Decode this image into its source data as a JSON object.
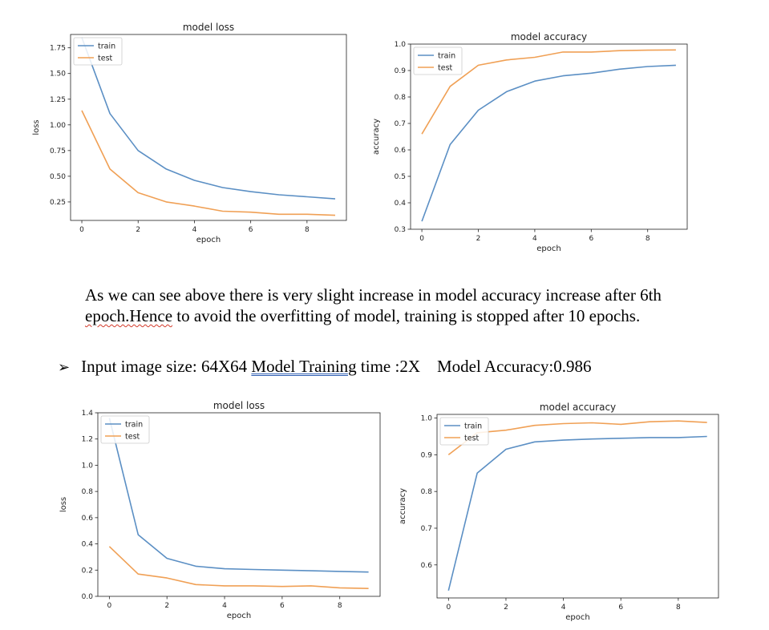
{
  "colors": {
    "train": "#5b8fc4",
    "test": "#f0a055"
  },
  "paragraph": {
    "line1": "As we can see above there is very slight increase in model accuracy increase after 6th",
    "line2_squiggle": "epoch.Hence",
    "line2_rest": " to avoid the overfitting of model, training is stopped after 10 epochs."
  },
  "bullet": {
    "icon": "arrow-bullet-icon",
    "glyph": "➢",
    "text_before": "Input image size: 64X64 ",
    "text_underlined": "Model  Training",
    "text_after": " time :2X    Model Accuracy:0.986"
  },
  "chart_data": [
    {
      "type": "line",
      "title": "model loss",
      "xlabel": "epoch",
      "ylabel": "loss",
      "xlim": [
        -0.4,
        9.4
      ],
      "ylim": [
        0.07,
        1.88
      ],
      "xticks": [
        0,
        2,
        4,
        6,
        8
      ],
      "yticks": [
        0.25,
        0.5,
        0.75,
        1.0,
        1.25,
        1.5,
        1.75
      ],
      "ytick_labels": [
        "0.25",
        "0.50",
        "0.75",
        "1.00",
        "1.25",
        "1.50",
        "1.75"
      ],
      "xtick_labels": [
        "0",
        "2",
        "4",
        "6",
        "8"
      ],
      "legend": "top-left",
      "grid": false,
      "x": [
        0,
        1,
        2,
        3,
        4,
        5,
        6,
        7,
        8,
        9
      ],
      "series": [
        {
          "name": "train",
          "values": [
            1.85,
            1.11,
            0.75,
            0.57,
            0.46,
            0.39,
            0.35,
            0.32,
            0.3,
            0.28
          ]
        },
        {
          "name": "test",
          "values": [
            1.14,
            0.57,
            0.34,
            0.25,
            0.21,
            0.16,
            0.15,
            0.13,
            0.13,
            0.12
          ]
        }
      ]
    },
    {
      "type": "line",
      "title": "model accuracy",
      "xlabel": "epoch",
      "ylabel": "accuracy",
      "xlim": [
        -0.4,
        9.4
      ],
      "ylim": [
        0.3,
        1.0
      ],
      "xticks": [
        0,
        2,
        4,
        6,
        8
      ],
      "yticks": [
        0.3,
        0.4,
        0.5,
        0.6,
        0.7,
        0.8,
        0.9,
        1.0
      ],
      "ytick_labels": [
        "0.3",
        "0.4",
        "0.5",
        "0.6",
        "0.7",
        "0.8",
        "0.9",
        "1.0"
      ],
      "xtick_labels": [
        "0",
        "2",
        "4",
        "6",
        "8"
      ],
      "legend": "top-left",
      "grid": false,
      "x": [
        0,
        1,
        2,
        3,
        4,
        5,
        6,
        7,
        8,
        9
      ],
      "series": [
        {
          "name": "train",
          "values": [
            0.33,
            0.62,
            0.75,
            0.82,
            0.86,
            0.88,
            0.89,
            0.905,
            0.915,
            0.92
          ]
        },
        {
          "name": "test",
          "values": [
            0.66,
            0.84,
            0.92,
            0.94,
            0.95,
            0.97,
            0.97,
            0.975,
            0.977,
            0.978
          ]
        }
      ]
    },
    {
      "type": "line",
      "title": "model loss",
      "xlabel": "epoch",
      "ylabel": "loss",
      "xlim": [
        -0.4,
        9.4
      ],
      "ylim": [
        0.0,
        1.4
      ],
      "xticks": [
        0,
        2,
        4,
        6,
        8
      ],
      "yticks": [
        0.0,
        0.2,
        0.4,
        0.6,
        0.8,
        1.0,
        1.2,
        1.4
      ],
      "ytick_labels": [
        "0.0",
        "0.2",
        "0.4",
        "0.6",
        "0.8",
        "1.0",
        "1.2",
        "1.4"
      ],
      "xtick_labels": [
        "0",
        "2",
        "4",
        "6",
        "8"
      ],
      "legend": "top-left",
      "grid": false,
      "x": [
        0,
        1,
        2,
        3,
        4,
        5,
        6,
        7,
        8,
        9
      ],
      "series": [
        {
          "name": "train",
          "values": [
            1.36,
            0.47,
            0.29,
            0.23,
            0.21,
            0.205,
            0.2,
            0.195,
            0.19,
            0.185
          ]
        },
        {
          "name": "test",
          "values": [
            0.38,
            0.17,
            0.14,
            0.09,
            0.08,
            0.08,
            0.075,
            0.08,
            0.065,
            0.06
          ]
        }
      ]
    },
    {
      "type": "line",
      "title": "model accuracy",
      "xlabel": "epoch",
      "ylabel": "accuracy",
      "xlim": [
        -0.4,
        9.4
      ],
      "ylim": [
        0.51,
        1.01
      ],
      "xticks": [
        0,
        2,
        4,
        6,
        8
      ],
      "yticks": [
        0.6,
        0.7,
        0.8,
        0.9,
        1.0
      ],
      "ytick_labels": [
        "0.6",
        "0.7",
        "0.8",
        "0.9",
        "1.0"
      ],
      "xtick_labels": [
        "0",
        "2",
        "4",
        "6",
        "8"
      ],
      "legend": "top-left",
      "grid": false,
      "x": [
        0,
        1,
        2,
        3,
        4,
        5,
        6,
        7,
        8,
        9
      ],
      "series": [
        {
          "name": "train",
          "values": [
            0.53,
            0.85,
            0.915,
            0.935,
            0.94,
            0.943,
            0.945,
            0.947,
            0.947,
            0.95
          ]
        },
        {
          "name": "test",
          "values": [
            0.9,
            0.96,
            0.967,
            0.98,
            0.985,
            0.987,
            0.983,
            0.99,
            0.992,
            0.988
          ]
        }
      ]
    }
  ]
}
